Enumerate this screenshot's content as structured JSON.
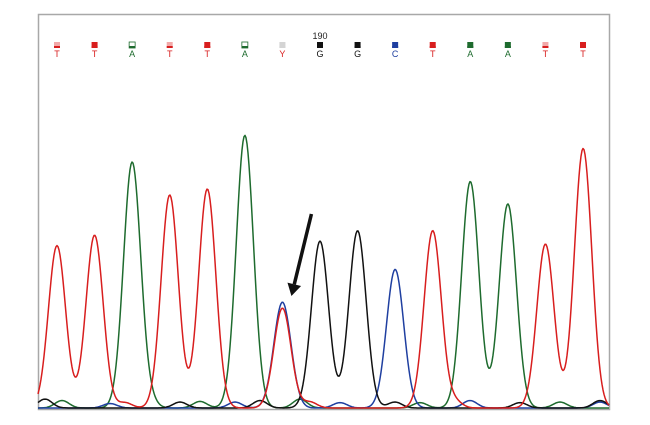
{
  "chart_data": {
    "type": "line",
    "title": "",
    "xlabel": "",
    "ylabel": "",
    "position_label": "190",
    "grid": false,
    "base_colors": {
      "A": "#1e6b2e",
      "C": "#1f3fa0",
      "G": "#111111",
      "T": "#d81e1e",
      "Y": "#d81e1e"
    },
    "quality_colors": {
      "high": "#d81e1e",
      "low": "#f2a9a9"
    },
    "base_calls": [
      {
        "base": "T",
        "quality": "low"
      },
      {
        "base": "T",
        "quality": "high"
      },
      {
        "base": "A",
        "quality": "mixed"
      },
      {
        "base": "T",
        "quality": "low"
      },
      {
        "base": "T",
        "quality": "high"
      },
      {
        "base": "A",
        "quality": "mixed"
      },
      {
        "base": "Y",
        "quality": "uncertain"
      },
      {
        "base": "G",
        "quality": "high"
      },
      {
        "base": "G",
        "quality": "high"
      },
      {
        "base": "C",
        "quality": "high"
      },
      {
        "base": "T",
        "quality": "high"
      },
      {
        "base": "A",
        "quality": "high"
      },
      {
        "base": "A",
        "quality": "high"
      },
      {
        "base": "T",
        "quality": "low"
      },
      {
        "base": "T",
        "quality": "high"
      }
    ],
    "ylim": [
      0,
      1
    ],
    "peaks": [
      {
        "channel": "T",
        "call_index": 0,
        "height": 0.545
      },
      {
        "channel": "T",
        "call_index": 1,
        "height": 0.58
      },
      {
        "channel": "A",
        "call_index": 2,
        "height": 0.825
      },
      {
        "channel": "T",
        "call_index": 3,
        "height": 0.715
      },
      {
        "channel": "T",
        "call_index": 4,
        "height": 0.735
      },
      {
        "channel": "A",
        "call_index": 5,
        "height": 0.915
      },
      {
        "channel": "C",
        "call_index": 6,
        "height": 0.355
      },
      {
        "channel": "T",
        "call_index": 6,
        "height": 0.335
      },
      {
        "channel": "G",
        "call_index": 7,
        "height": 0.56
      },
      {
        "channel": "G",
        "call_index": 8,
        "height": 0.595
      },
      {
        "channel": "C",
        "call_index": 9,
        "height": 0.465
      },
      {
        "channel": "T",
        "call_index": 10,
        "height": 0.595
      },
      {
        "channel": "A",
        "call_index": 11,
        "height": 0.76
      },
      {
        "channel": "A",
        "call_index": 12,
        "height": 0.685
      },
      {
        "channel": "T",
        "call_index": 13,
        "height": 0.55
      },
      {
        "channel": "T",
        "call_index": 14,
        "height": 0.86
      }
    ],
    "annotations": [
      {
        "type": "arrow",
        "points_to_call_index": 6
      }
    ]
  }
}
